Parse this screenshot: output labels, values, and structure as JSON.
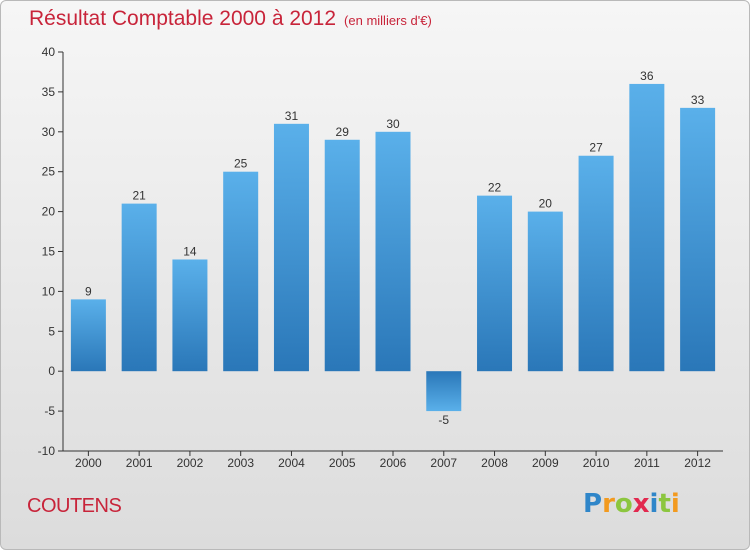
{
  "chart_data": {
    "type": "bar",
    "title": "Résultat Comptable 2000 à 2012",
    "subtitle": "(en milliers d'€)",
    "categories": [
      "2000",
      "2001",
      "2002",
      "2003",
      "2004",
      "2005",
      "2006",
      "2007",
      "2008",
      "2009",
      "2010",
      "2011",
      "2012"
    ],
    "values": [
      9,
      21,
      14,
      25,
      31,
      29,
      30,
      -5,
      22,
      20,
      27,
      36,
      33
    ],
    "ylim": [
      -10,
      40
    ],
    "yticks": [
      -10,
      -5,
      0,
      5,
      10,
      15,
      20,
      25,
      30,
      35,
      40
    ],
    "xlabel": "",
    "ylabel": "",
    "grid": false,
    "bar_color": "#3a8fd0",
    "legend": "none"
  },
  "commune": "COUTENS",
  "logo": {
    "text": "Proxiti",
    "letters": [
      {
        "ch": "P",
        "color": "#2f86c9"
      },
      {
        "ch": "r",
        "color": "#f29a1f"
      },
      {
        "ch": "o",
        "color": "#8cc63f"
      },
      {
        "ch": "x",
        "color": "#e2294f"
      },
      {
        "ch": "i",
        "color": "#2f86c9"
      },
      {
        "ch": "t",
        "color": "#8cc63f"
      },
      {
        "ch": "i",
        "color": "#f29a1f"
      }
    ]
  },
  "colors": {
    "title": "#c8243a",
    "bar_top": "#5ab0ea",
    "bar_bottom": "#2a77b8",
    "axis": "#333333"
  }
}
